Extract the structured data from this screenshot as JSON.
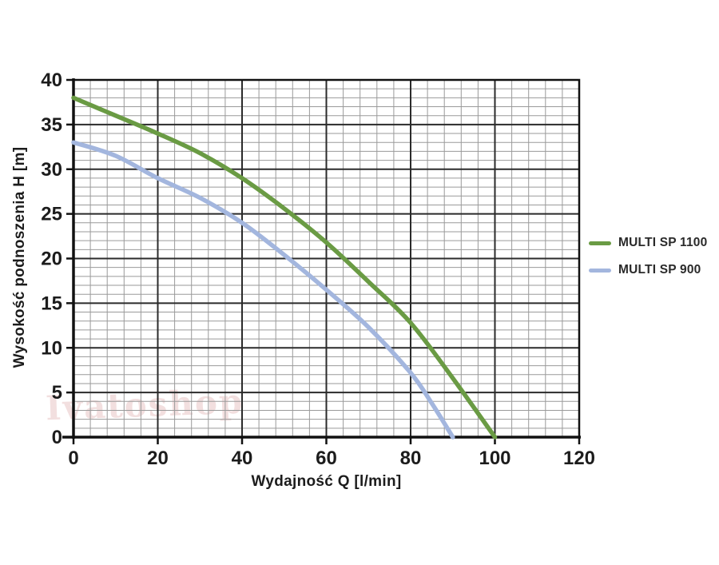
{
  "watermark": {
    "text": "Ivatoshop",
    "color": "#e9c6c6"
  },
  "chart_data": {
    "type": "line",
    "title": "",
    "xlabel": "Wydajność Q [l/min]",
    "ylabel": "Wysokość podnoszenia H [m]",
    "xlim": [
      0,
      120
    ],
    "ylim": [
      0,
      40
    ],
    "x_ticks": [
      0,
      20,
      40,
      60,
      80,
      100,
      120
    ],
    "y_ticks": [
      0,
      5,
      10,
      15,
      20,
      25,
      30,
      35,
      40
    ],
    "x_major_step": 20,
    "x_minor_step": 4,
    "y_major_step": 5,
    "y_minor_step": 1,
    "grid": true,
    "legend_position": "right",
    "series": [
      {
        "name": "MULTI SP 1100",
        "color": "#6a9b44",
        "points": [
          [
            0,
            38
          ],
          [
            10,
            36
          ],
          [
            20,
            34
          ],
          [
            30,
            31.8
          ],
          [
            40,
            29
          ],
          [
            50,
            25.6
          ],
          [
            60,
            21.8
          ],
          [
            70,
            17.4
          ],
          [
            80,
            12.8
          ],
          [
            90,
            6.6
          ],
          [
            100,
            0
          ]
        ]
      },
      {
        "name": "MULTI SP 900",
        "color": "#a3b6de",
        "points": [
          [
            0,
            33
          ],
          [
            10,
            31.5
          ],
          [
            20,
            29
          ],
          [
            30,
            26.8
          ],
          [
            40,
            24
          ],
          [
            50,
            20.4
          ],
          [
            60,
            16.5
          ],
          [
            70,
            12.3
          ],
          [
            80,
            7.2
          ],
          [
            85,
            3.8
          ],
          [
            90,
            0
          ]
        ]
      }
    ],
    "colors": {
      "grid_minor": "#9a9a9a",
      "grid_major": "#2b2b2b",
      "axis": "#111111",
      "tick_label": "#1c1c1c"
    }
  }
}
